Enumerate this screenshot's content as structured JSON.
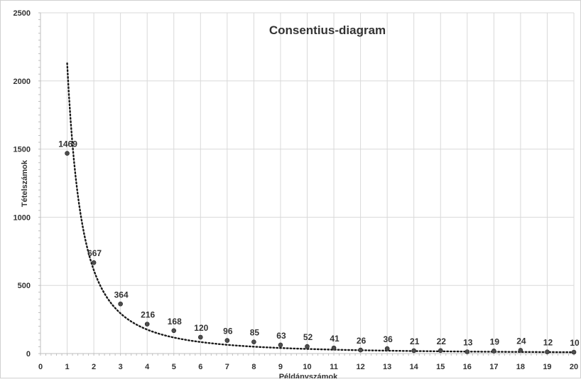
{
  "chart_data": {
    "type": "scatter",
    "title": "Consentius-diagram",
    "xlabel": "Példányszámok",
    "ylabel": "Tételszámok",
    "xlim": [
      0,
      20
    ],
    "ylim": [
      0,
      2500
    ],
    "x_ticks": [
      "0",
      "1",
      "2",
      "3",
      "4",
      "5",
      "6",
      "7",
      "8",
      "9",
      "10",
      "11",
      "12",
      "13",
      "14",
      "15",
      "16",
      "17",
      "18",
      "19",
      "20"
    ],
    "y_ticks": [
      "0",
      "500",
      "1000",
      "1500",
      "2000",
      "2500"
    ],
    "grid": true,
    "legend": "none",
    "trendline": {
      "type": "power",
      "style": "dotted",
      "x_start": 1,
      "y_start": 2130,
      "exponent": -1.8
    },
    "series": [
      {
        "x": [
          1,
          2,
          3,
          4,
          5,
          6,
          7,
          8,
          9,
          10,
          11,
          12,
          13,
          14,
          15,
          16,
          17,
          18,
          19,
          20
        ],
        "values": [
          1469,
          667,
          364,
          216,
          168,
          120,
          96,
          85,
          63,
          52,
          41,
          26,
          36,
          21,
          22,
          13,
          19,
          24,
          12,
          10
        ],
        "labels": [
          "1469",
          "667",
          "364",
          "216",
          "168",
          "120",
          "96",
          "85",
          "63",
          "52",
          "41",
          "26",
          "36",
          "21",
          "22",
          "13",
          "19",
          "24",
          "12",
          "10"
        ]
      }
    ],
    "colors": {
      "marker": "#4d4d4d",
      "trendline": "#1a1a1a",
      "grid": "#d9d9d9",
      "text": "#333333"
    }
  }
}
